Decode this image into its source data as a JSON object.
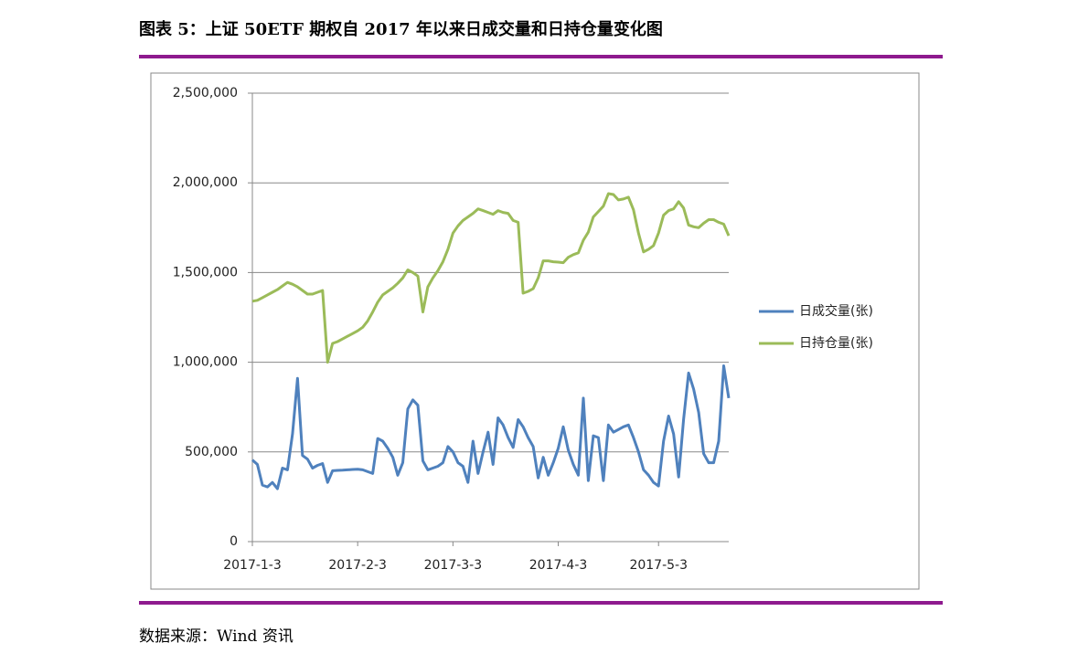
{
  "header": {
    "title": "图表 5：上证 50ETF 期权自 2017 年以来日成交量和日持仓量变化图"
  },
  "source": "数据来源：Wind 资讯",
  "chart_data": {
    "type": "line",
    "categories": [
      "2017-1-3",
      null,
      null,
      null,
      null,
      null,
      null,
      null,
      null,
      null,
      null,
      null,
      null,
      null,
      null,
      null,
      null,
      null,
      null,
      null,
      null,
      "2017-2-3",
      null,
      null,
      null,
      null,
      null,
      null,
      null,
      null,
      null,
      null,
      null,
      null,
      null,
      null,
      null,
      null,
      null,
      null,
      "2017-3-3",
      null,
      null,
      null,
      null,
      null,
      null,
      null,
      null,
      null,
      null,
      null,
      null,
      null,
      null,
      null,
      null,
      null,
      null,
      null,
      null,
      "2017-4-3",
      null,
      null,
      null,
      null,
      null,
      null,
      null,
      null,
      null,
      null,
      null,
      null,
      null,
      null,
      null,
      null,
      null,
      null,
      null,
      "2017-5-3",
      null,
      null,
      null,
      null,
      null,
      null,
      null,
      null,
      null,
      null,
      null,
      null,
      null,
      null
    ],
    "series": [
      {
        "name": "日成交量(张)",
        "color": "#4f81bd",
        "values": [
          455000,
          430000,
          315000,
          305000,
          330000,
          295000,
          410000,
          400000,
          600000,
          910000,
          480000,
          460000,
          410000,
          425000,
          435000,
          330000,
          395000,
          397000,
          398000,
          400000,
          402000,
          404000,
          400000,
          390000,
          380000,
          575000,
          560000,
          520000,
          470000,
          370000,
          440000,
          740000,
          790000,
          760000,
          450000,
          400000,
          410000,
          420000,
          440000,
          530000,
          500000,
          440000,
          420000,
          330000,
          560000,
          380000,
          500000,
          610000,
          430000,
          690000,
          650000,
          580000,
          525000,
          680000,
          640000,
          580000,
          530000,
          355000,
          470000,
          370000,
          440000,
          520000,
          640000,
          510000,
          430000,
          370000,
          800000,
          340000,
          590000,
          580000,
          340000,
          650000,
          610000,
          625000,
          640000,
          650000,
          580000,
          500000,
          400000,
          370000,
          330000,
          310000,
          560000,
          700000,
          600000,
          360000,
          680000,
          940000,
          850000,
          720000,
          490000,
          440000,
          440000,
          560000,
          980000,
          800000
        ]
      },
      {
        "name": "日持仓量(张)",
        "color": "#9bbb59",
        "values": [
          1340000,
          1345000,
          1360000,
          1375000,
          1390000,
          1405000,
          1425000,
          1445000,
          1435000,
          1420000,
          1400000,
          1380000,
          1380000,
          1390000,
          1400000,
          1000000,
          1105000,
          1115000,
          1130000,
          1145000,
          1160000,
          1175000,
          1195000,
          1230000,
          1280000,
          1335000,
          1375000,
          1395000,
          1415000,
          1440000,
          1470000,
          1515000,
          1500000,
          1480000,
          1280000,
          1420000,
          1470000,
          1510000,
          1560000,
          1630000,
          1720000,
          1760000,
          1790000,
          1810000,
          1830000,
          1855000,
          1845000,
          1835000,
          1825000,
          1845000,
          1835000,
          1830000,
          1790000,
          1780000,
          1385000,
          1395000,
          1410000,
          1470000,
          1565000,
          1565000,
          1560000,
          1558000,
          1555000,
          1585000,
          1600000,
          1610000,
          1680000,
          1725000,
          1810000,
          1840000,
          1870000,
          1940000,
          1935000,
          1905000,
          1910000,
          1920000,
          1850000,
          1720000,
          1615000,
          1630000,
          1650000,
          1720000,
          1820000,
          1845000,
          1855000,
          1895000,
          1860000,
          1765000,
          1755000,
          1750000,
          1775000,
          1795000,
          1795000,
          1780000,
          1770000,
          1705000
        ]
      }
    ],
    "ylim": [
      0,
      2500000
    ],
    "yticks": [
      0,
      {
        "value": 500000,
        "label": "500,000"
      },
      {
        "value": 1000000,
        "label": "1,000,000"
      },
      {
        "value": 1500000,
        "label": "1,500,000"
      },
      {
        "value": 2000000,
        "label": "2,000,000"
      },
      {
        "value": 2500000,
        "label": "2,500,000"
      }
    ],
    "grid": true,
    "legend": "right"
  }
}
